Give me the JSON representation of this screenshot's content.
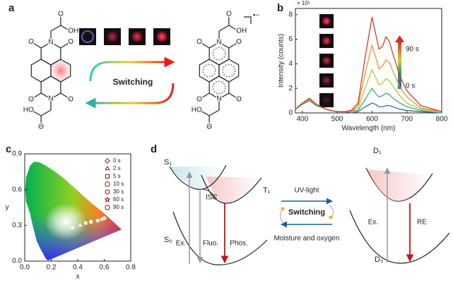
{
  "figure": {
    "panel_labels": [
      "a",
      "b",
      "c",
      "d"
    ],
    "a": {
      "switching": "Switching",
      "left_atoms": [
        "O",
        "O",
        "O",
        "O",
        "N",
        "N",
        "O",
        "OH",
        "O",
        "HO"
      ],
      "right_atoms": [
        "O",
        "O",
        "O",
        "O",
        "N",
        "N",
        "O",
        "OH",
        "O",
        "HO"
      ],
      "charge": "•−"
    },
    "d": {
      "states": {
        "s1": "S₁",
        "t1": "T₁",
        "s0": "S₀",
        "d1": "D₁",
        "d0": "D₀"
      },
      "transitions": {
        "isc": "ISC",
        "ex": "Ex.",
        "fluo": "Fluo.",
        "phos": "Phos.",
        "ex2": "Ex.",
        "re": "RE"
      },
      "switch": {
        "forward": "UV-light",
        "middle": "Switching",
        "back": "Moisture and oxygen"
      }
    }
  },
  "chart_data": [
    {
      "type": "line",
      "xlabel": "Wavelength (nm)",
      "ylabel": "Intensity (counts)",
      "multiplier": "× 10⁵",
      "colorbar_labels": [
        "90 s",
        "0 s"
      ],
      "xlim": [
        380,
        800
      ],
      "xticks": [
        400,
        500,
        600,
        700,
        800
      ],
      "ylim": [
        0,
        8.5
      ],
      "yticks": [
        0,
        2,
        4,
        6,
        8
      ],
      "x": [
        380,
        400,
        420,
        440,
        460,
        480,
        500,
        520,
        540,
        560,
        580,
        600,
        610,
        620,
        630,
        640,
        650,
        660,
        680,
        700,
        740,
        800
      ],
      "series": [
        {
          "color": "#2a5fa8",
          "values": [
            0.3,
            0.7,
            1.0,
            0.6,
            0.4,
            0.2,
            0.1,
            0.1,
            0,
            0.1,
            0.5,
            0.8,
            0.7,
            0.5,
            0.5,
            0.6,
            0.6,
            0.5,
            0.3,
            0.2,
            0.1,
            0
          ]
        },
        {
          "color": "#2aa86a",
          "values": [
            0.3,
            0.7,
            1.0,
            0.6,
            0.4,
            0.2,
            0.1,
            0.1,
            0.1,
            0.2,
            1.1,
            2.0,
            1.6,
            1.3,
            1.4,
            1.6,
            1.5,
            1.2,
            0.8,
            0.5,
            0.2,
            0
          ]
        },
        {
          "color": "#a8c830",
          "values": [
            0.3,
            0.8,
            1.1,
            0.7,
            0.4,
            0.2,
            0.1,
            0.1,
            0.1,
            0.4,
            2.0,
            3.5,
            2.9,
            2.3,
            2.4,
            2.8,
            2.6,
            2.2,
            1.4,
            0.8,
            0.3,
            0.1
          ]
        },
        {
          "color": "#f08a24",
          "values": [
            0.3,
            0.8,
            1.1,
            0.7,
            0.4,
            0.2,
            0.1,
            0.1,
            0.1,
            0.6,
            3.2,
            5.5,
            4.6,
            3.6,
            3.8,
            4.3,
            4.1,
            3.4,
            2.1,
            1.3,
            0.4,
            0.1
          ]
        },
        {
          "color": "#d62d20",
          "values": [
            0.3,
            0.8,
            1.2,
            0.7,
            0.4,
            0.2,
            0.1,
            0.1,
            0.2,
            0.8,
            4.5,
            7.8,
            6.5,
            5.2,
            5.4,
            6.2,
            5.8,
            4.8,
            3.0,
            1.8,
            0.6,
            0.1
          ]
        }
      ]
    },
    {
      "type": "scatter",
      "xlabel": "x",
      "ylabel": "y",
      "xlim": [
        0,
        0.8
      ],
      "xticks": [
        {
          "value": 0,
          "label": "0.0"
        },
        {
          "value": 0.2,
          "label": "0.2"
        },
        {
          "value": 0.4,
          "label": "0.4"
        },
        {
          "value": 0.6,
          "label": "0.6"
        },
        {
          "value": 0.8,
          "label": "0.8"
        }
      ],
      "ylim": [
        0,
        0.9
      ],
      "yticks": [
        {
          "value": 0,
          "label": "0.0"
        },
        {
          "value": 0.3,
          "label": "0.3"
        },
        {
          "value": 0.6,
          "label": "0.6"
        },
        {
          "value": 0.9,
          "label": "0.9"
        }
      ],
      "series": [
        {
          "name": "0 s",
          "marker": "diamond",
          "color": "#8b1a1a",
          "x": [
            0.36
          ],
          "values": [
            0.28
          ]
        },
        {
          "name": "2 s",
          "marker": "triangle",
          "color": "#8b1a1a",
          "x": [
            0.42
          ],
          "values": [
            0.3
          ]
        },
        {
          "name": "5 s",
          "marker": "square",
          "color": "#8b1a1a",
          "x": [
            0.46
          ],
          "values": [
            0.32
          ]
        },
        {
          "name": "10 s",
          "marker": "circle",
          "color": "#8b1a1a",
          "x": [
            0.5
          ],
          "values": [
            0.33
          ]
        },
        {
          "name": "30 s",
          "marker": "hexagon",
          "color": "#8b1a1a",
          "x": [
            0.55
          ],
          "values": [
            0.34
          ]
        },
        {
          "name": "60 s",
          "marker": "star",
          "color": "#8b1a1a",
          "x": [
            0.58
          ],
          "values": [
            0.35
          ]
        },
        {
          "name": "90 s",
          "marker": "circle",
          "color": "#8b1a1a",
          "x": [
            0.6
          ],
          "values": [
            0.36
          ]
        }
      ]
    }
  ]
}
